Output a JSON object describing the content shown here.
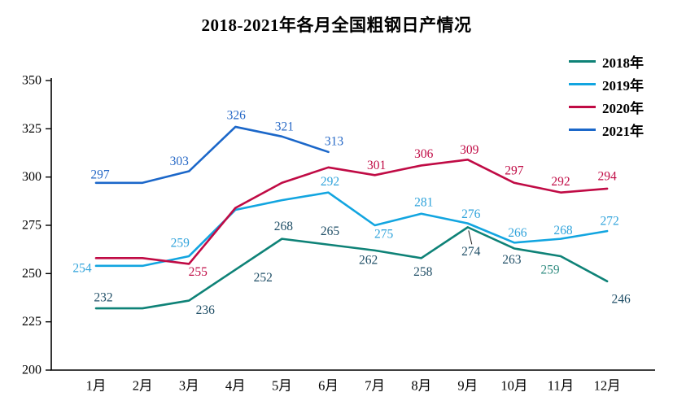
{
  "chart_data": {
    "type": "line",
    "title": "2018-2021年各月全国粗钢日产情况",
    "categories": [
      "1月",
      "2月",
      "3月",
      "4月",
      "5月",
      "6月",
      "7月",
      "8月",
      "9月",
      "10月",
      "11月",
      "12月"
    ],
    "ylim": [
      200,
      350
    ],
    "ytick_step": 25,
    "yticks": [
      200,
      225,
      250,
      275,
      300,
      325,
      350
    ],
    "grid": false,
    "legend_position": "top-right",
    "axis_color": "#000000",
    "background": "#ffffff",
    "series": [
      {
        "name": "2018年",
        "color": "#0E8277",
        "label_color": "#1F4E66",
        "values": [
          232,
          232,
          236,
          252,
          268,
          265,
          262,
          258,
          274,
          263,
          259,
          246
        ],
        "labels": [
          {
            "i": 0,
            "text": "232",
            "dx": 9,
            "dy": -13
          },
          {
            "i": 2,
            "text": "236",
            "dx": 20,
            "dy": 12
          },
          {
            "i": 3,
            "text": "252",
            "dx": 34,
            "dy": 10
          },
          {
            "i": 4,
            "text": "268",
            "dx": 2,
            "dy": -15
          },
          {
            "i": 5,
            "text": "265",
            "dx": 2,
            "dy": -16
          },
          {
            "i": 6,
            "text": "262",
            "dx": -8,
            "dy": 12
          },
          {
            "i": 7,
            "text": "258",
            "dx": 2,
            "dy": 17
          },
          {
            "i": 8,
            "text": "274",
            "dx": 4,
            "dy": 30,
            "leader": true
          },
          {
            "i": 9,
            "text": "263",
            "dx": -3,
            "dy": 14
          },
          {
            "i": 10,
            "text": "259",
            "dx": -13,
            "dy": 17,
            "color": "#2E8B7F"
          },
          {
            "i": 11,
            "text": "246",
            "dx": 17,
            "dy": 22
          }
        ]
      },
      {
        "name": "2019年",
        "color": "#12A5E0",
        "label_color": "#2FA3DB",
        "values": [
          254,
          254,
          259,
          283,
          288,
          292,
          275,
          281,
          276,
          266,
          268,
          272
        ],
        "labels": [
          {
            "i": 0,
            "text": "254",
            "dx": -17,
            "dy": 3
          },
          {
            "i": 2,
            "text": "259",
            "dx": -11,
            "dy": -16
          },
          {
            "i": 5,
            "text": "292",
            "dx": 2,
            "dy": -13
          },
          {
            "i": 6,
            "text": "275",
            "dx": 11,
            "dy": 11
          },
          {
            "i": 7,
            "text": "281",
            "dx": 3,
            "dy": -14
          },
          {
            "i": 8,
            "text": "276",
            "dx": 4,
            "dy": -11
          },
          {
            "i": 9,
            "text": "266",
            "dx": 4,
            "dy": -12
          },
          {
            "i": 10,
            "text": "268",
            "dx": 3,
            "dy": -10
          },
          {
            "i": 11,
            "text": "272",
            "dx": 3,
            "dy": -12
          }
        ]
      },
      {
        "name": "2020年",
        "color": "#C00B45",
        "label_color": "#C00B45",
        "values": [
          258,
          258,
          255,
          284,
          297,
          305,
          301,
          306,
          309,
          297,
          292,
          294
        ],
        "labels": [
          {
            "i": 2,
            "text": "255",
            "dx": 11,
            "dy": 10
          },
          {
            "i": 6,
            "text": "301",
            "dx": 2,
            "dy": -12
          },
          {
            "i": 7,
            "text": "306",
            "dx": 3,
            "dy": -14
          },
          {
            "i": 8,
            "text": "309",
            "dx": 2,
            "dy": -12
          },
          {
            "i": 9,
            "text": "297",
            "dx": 0,
            "dy": -15
          },
          {
            "i": 10,
            "text": "292",
            "dx": 0,
            "dy": -13
          },
          {
            "i": 11,
            "text": "294",
            "dx": 0,
            "dy": -15
          }
        ]
      },
      {
        "name": "2021年",
        "color": "#1B67C9",
        "label_color": "#2668C6",
        "values": [
          297,
          297,
          303,
          326,
          321,
          313,
          null,
          null,
          null,
          null,
          null,
          null
        ],
        "labels": [
          {
            "i": 0,
            "text": "297",
            "dx": 5,
            "dy": -10
          },
          {
            "i": 2,
            "text": "303",
            "dx": -12,
            "dy": -12
          },
          {
            "i": 3,
            "text": "326",
            "dx": 1,
            "dy": -14
          },
          {
            "i": 4,
            "text": "321",
            "dx": 3,
            "dy": -12
          },
          {
            "i": 5,
            "text": "313",
            "dx": 7,
            "dy": -13
          }
        ]
      }
    ]
  }
}
